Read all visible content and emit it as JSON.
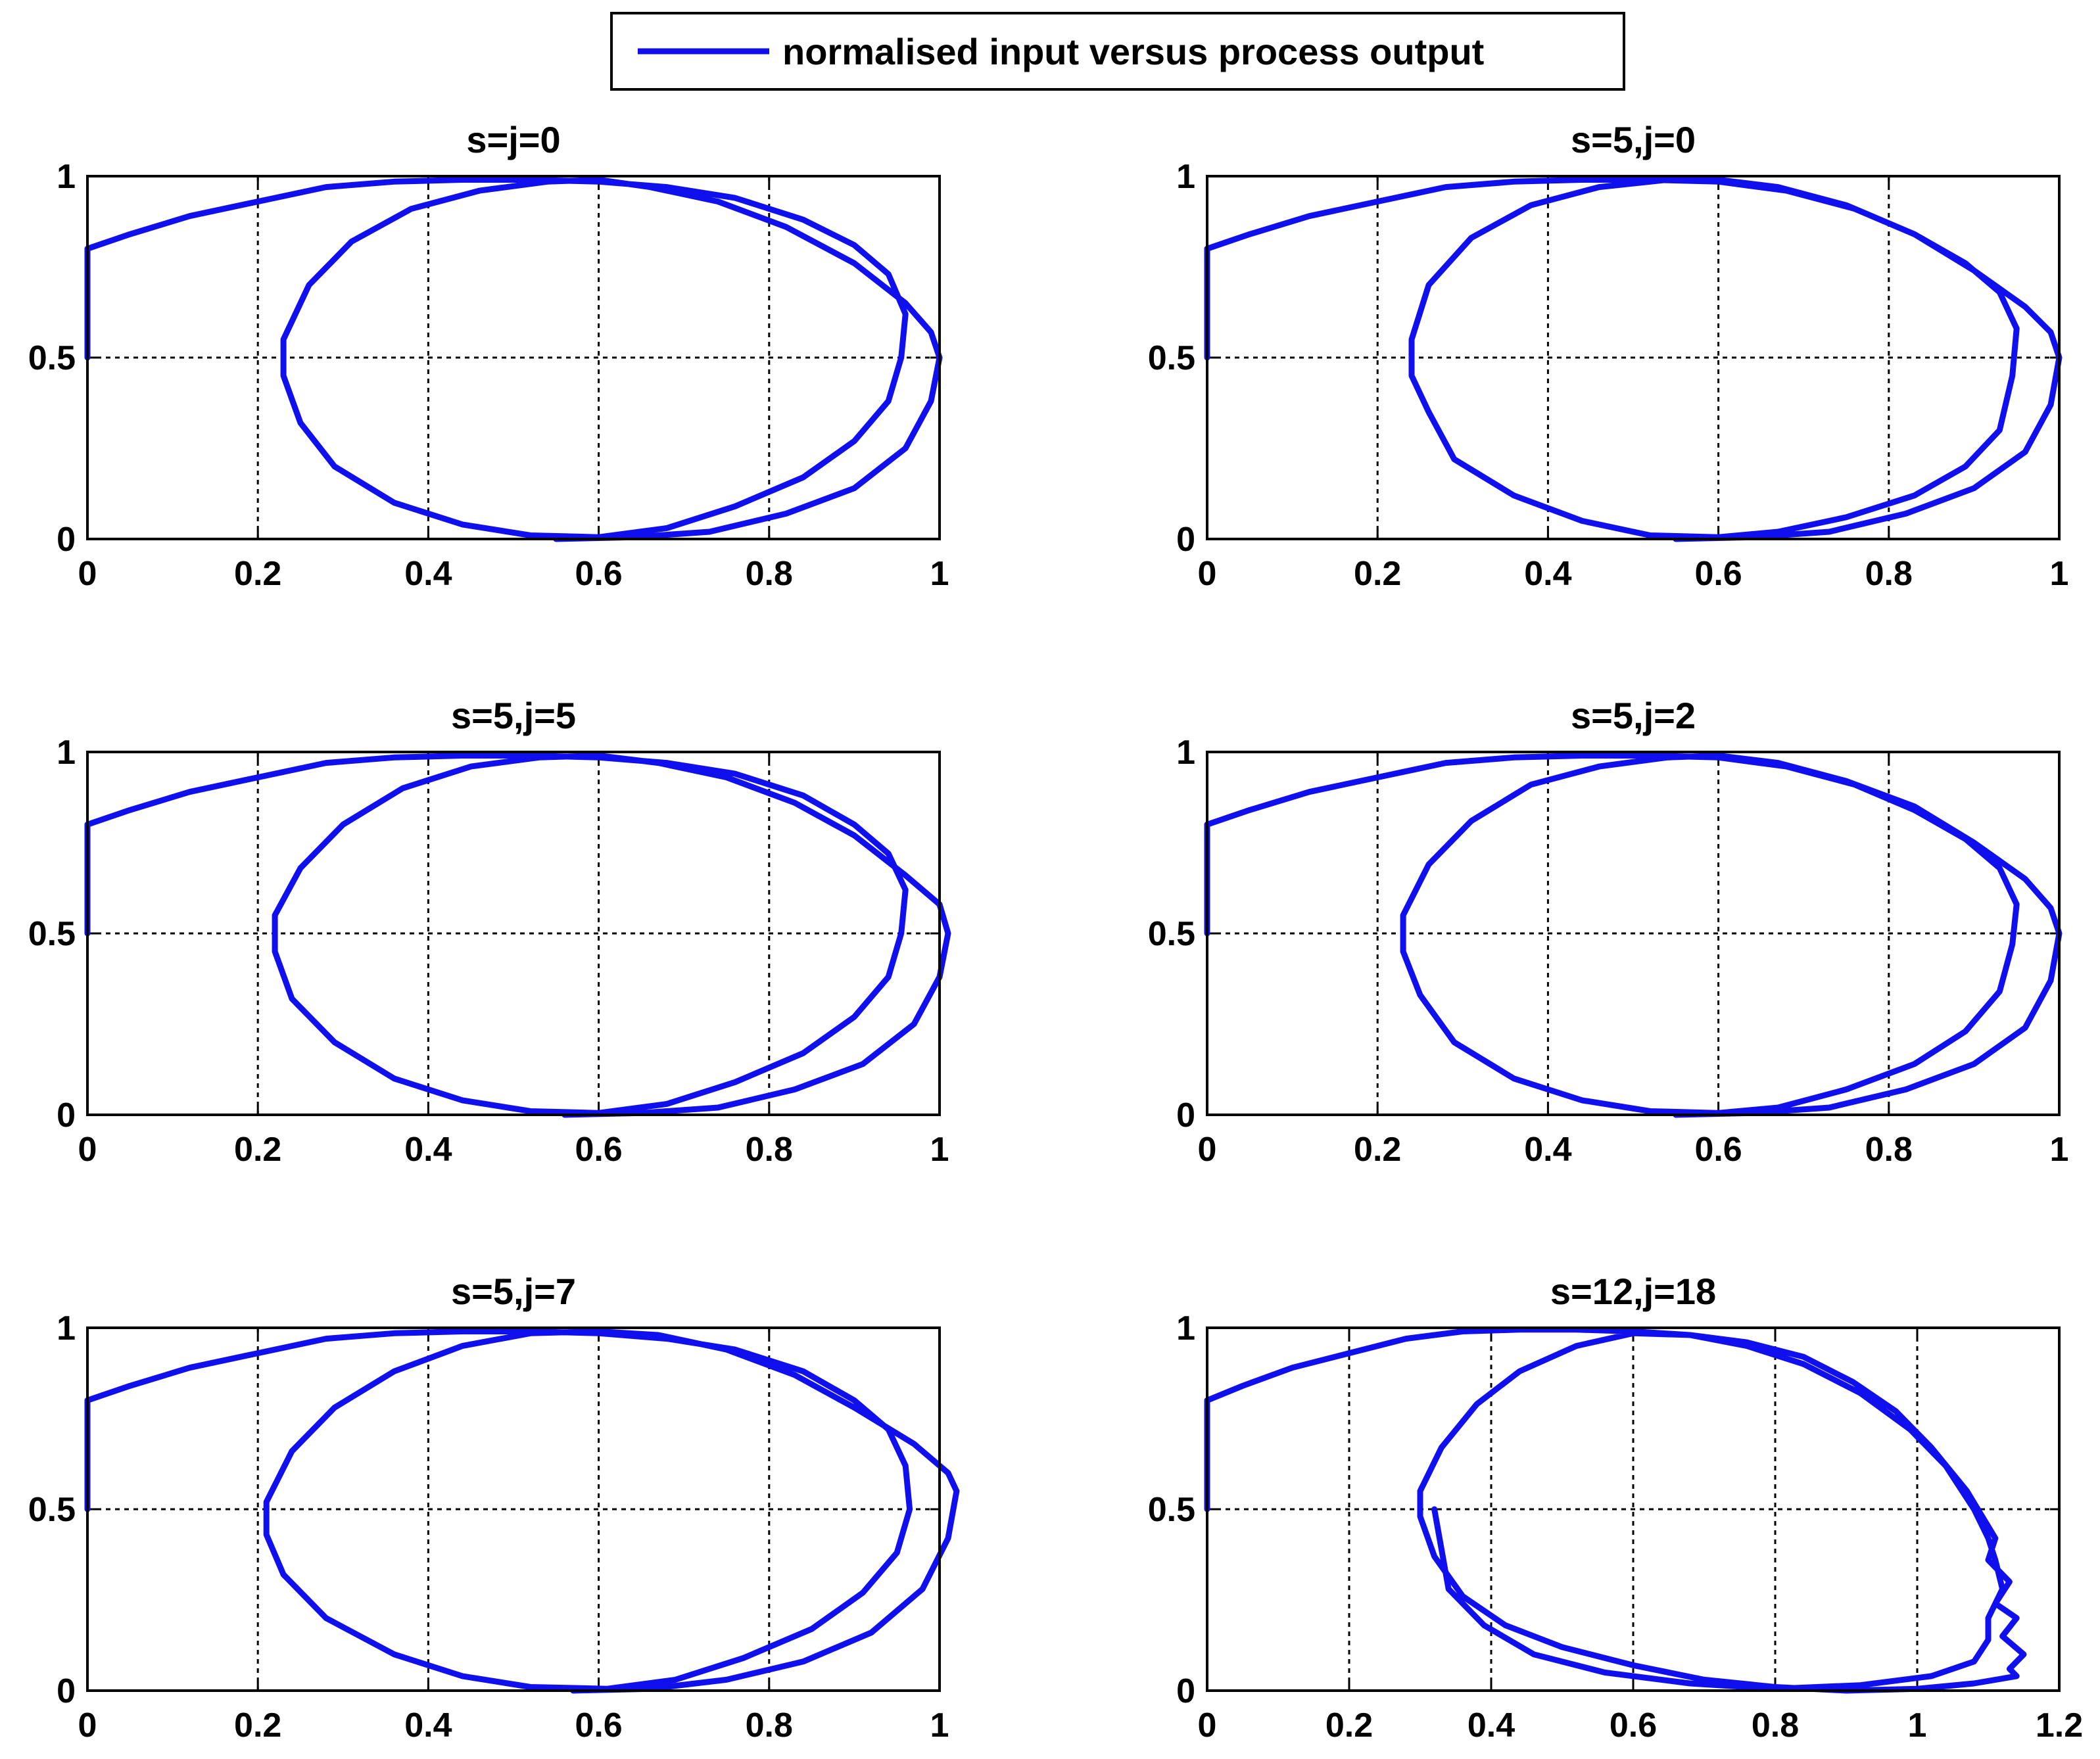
{
  "legend": {
    "label": "normalised input versus process output",
    "color": "#1010ee"
  },
  "chart_data": [
    {
      "type": "line",
      "title": "s=j=0",
      "xlim": [
        0,
        1
      ],
      "ylim": [
        0,
        1
      ],
      "xticks": [
        0,
        0.2,
        0.4,
        0.6,
        0.8,
        1
      ],
      "xtick_labels": [
        "0",
        "0.2",
        "0.4",
        "0.6",
        "0.8",
        "1"
      ],
      "yticks": [
        0,
        0.5,
        1
      ],
      "ytick_labels": [
        "0",
        "0.5",
        "1"
      ],
      "grid": true,
      "series": [
        {
          "name": "normalised input versus process output",
          "x": [
            0,
            0,
            0.05,
            0.12,
            0.2,
            0.28,
            0.36,
            0.44,
            0.52,
            0.6,
            0.68,
            0.76,
            0.84,
            0.9,
            0.94,
            0.96,
            0.955,
            0.94,
            0.9,
            0.84,
            0.76,
            0.68,
            0.6,
            0.52,
            0.44,
            0.36,
            0.29,
            0.25,
            0.23,
            0.23,
            0.26,
            0.31,
            0.38,
            0.46,
            0.54,
            0.6,
            0.66,
            0.74,
            0.82,
            0.9,
            0.96,
            0.99,
            1.0,
            0.99,
            0.96,
            0.9,
            0.82,
            0.73,
            0.64,
            0.55
          ],
          "y": [
            0.5,
            0.8,
            0.84,
            0.89,
            0.93,
            0.97,
            0.985,
            0.99,
            0.99,
            0.985,
            0.97,
            0.94,
            0.88,
            0.81,
            0.73,
            0.62,
            0.5,
            0.38,
            0.27,
            0.17,
            0.09,
            0.03,
            0.005,
            0.01,
            0.04,
            0.1,
            0.2,
            0.32,
            0.45,
            0.55,
            0.7,
            0.82,
            0.91,
            0.96,
            0.985,
            0.99,
            0.97,
            0.93,
            0.86,
            0.76,
            0.65,
            0.57,
            0.5,
            0.38,
            0.25,
            0.14,
            0.07,
            0.02,
            0.005,
            0.0
          ]
        }
      ]
    },
    {
      "type": "line",
      "title": "s=5,j=0",
      "xlim": [
        0,
        1
      ],
      "ylim": [
        0,
        1
      ],
      "xticks": [
        0,
        0.2,
        0.4,
        0.6,
        0.8,
        1
      ],
      "xtick_labels": [
        "0",
        "0.2",
        "0.4",
        "0.6",
        "0.8",
        "1"
      ],
      "yticks": [
        0,
        0.5,
        1
      ],
      "ytick_labels": [
        "0",
        "0.5",
        "1"
      ],
      "grid": true,
      "series": [
        {
          "name": "normalised input versus process output",
          "x": [
            0,
            0,
            0.05,
            0.12,
            0.2,
            0.28,
            0.36,
            0.44,
            0.52,
            0.6,
            0.68,
            0.76,
            0.83,
            0.89,
            0.93,
            0.95,
            0.945,
            0.93,
            0.89,
            0.83,
            0.75,
            0.67,
            0.6,
            0.52,
            0.44,
            0.36,
            0.29,
            0.26,
            0.24,
            0.24,
            0.26,
            0.31,
            0.38,
            0.46,
            0.54,
            0.6,
            0.67,
            0.75,
            0.83,
            0.9,
            0.96,
            0.99,
            1.0,
            0.99,
            0.96,
            0.9,
            0.82,
            0.73,
            0.64,
            0.55
          ],
          "y": [
            0.5,
            0.8,
            0.84,
            0.89,
            0.93,
            0.97,
            0.985,
            0.99,
            0.99,
            0.985,
            0.96,
            0.91,
            0.84,
            0.76,
            0.68,
            0.58,
            0.45,
            0.3,
            0.2,
            0.12,
            0.06,
            0.02,
            0.005,
            0.01,
            0.05,
            0.12,
            0.22,
            0.35,
            0.45,
            0.55,
            0.7,
            0.83,
            0.92,
            0.97,
            0.99,
            0.99,
            0.97,
            0.92,
            0.84,
            0.74,
            0.64,
            0.57,
            0.5,
            0.37,
            0.24,
            0.14,
            0.07,
            0.02,
            0.005,
            0.0
          ]
        }
      ]
    },
    {
      "type": "line",
      "title": "s=5,j=5",
      "xlim": [
        0,
        1
      ],
      "ylim": [
        0,
        1
      ],
      "xticks": [
        0,
        0.2,
        0.4,
        0.6,
        0.8,
        1
      ],
      "xtick_labels": [
        "0",
        "0.2",
        "0.4",
        "0.6",
        "0.8",
        "1"
      ],
      "yticks": [
        0,
        0.5,
        1
      ],
      "ytick_labels": [
        "0",
        "0.5",
        "1"
      ],
      "grid": true,
      "series": [
        {
          "name": "normalised input versus process output",
          "x": [
            0,
            0,
            0.05,
            0.12,
            0.2,
            0.28,
            0.36,
            0.44,
            0.52,
            0.6,
            0.68,
            0.76,
            0.84,
            0.9,
            0.94,
            0.96,
            0.955,
            0.94,
            0.9,
            0.84,
            0.76,
            0.68,
            0.6,
            0.52,
            0.44,
            0.36,
            0.29,
            0.24,
            0.22,
            0.22,
            0.25,
            0.3,
            0.37,
            0.45,
            0.53,
            0.6,
            0.67,
            0.75,
            0.83,
            0.9,
            0.96,
            1.0,
            1.01,
            1.0,
            0.97,
            0.91,
            0.83,
            0.74,
            0.65,
            0.56
          ],
          "y": [
            0.5,
            0.8,
            0.84,
            0.89,
            0.93,
            0.97,
            0.985,
            0.99,
            0.99,
            0.985,
            0.97,
            0.94,
            0.88,
            0.8,
            0.72,
            0.62,
            0.5,
            0.38,
            0.27,
            0.17,
            0.09,
            0.03,
            0.005,
            0.01,
            0.04,
            0.1,
            0.2,
            0.32,
            0.45,
            0.55,
            0.68,
            0.8,
            0.9,
            0.96,
            0.985,
            0.99,
            0.97,
            0.93,
            0.86,
            0.77,
            0.66,
            0.58,
            0.5,
            0.38,
            0.25,
            0.14,
            0.07,
            0.02,
            0.005,
            0.0
          ]
        }
      ]
    },
    {
      "type": "line",
      "title": "s=5,j=2",
      "xlim": [
        0,
        1
      ],
      "ylim": [
        0,
        1
      ],
      "xticks": [
        0,
        0.2,
        0.4,
        0.6,
        0.8,
        1
      ],
      "xtick_labels": [
        "0",
        "0.2",
        "0.4",
        "0.6",
        "0.8",
        "1"
      ],
      "yticks": [
        0,
        0.5,
        1
      ],
      "ytick_labels": [
        "0",
        "0.5",
        "1"
      ],
      "grid": true,
      "series": [
        {
          "name": "normalised input versus process output",
          "x": [
            0,
            0,
            0.05,
            0.12,
            0.2,
            0.28,
            0.36,
            0.44,
            0.52,
            0.6,
            0.68,
            0.76,
            0.83,
            0.89,
            0.93,
            0.95,
            0.945,
            0.93,
            0.89,
            0.83,
            0.75,
            0.67,
            0.6,
            0.52,
            0.44,
            0.36,
            0.29,
            0.25,
            0.23,
            0.23,
            0.26,
            0.31,
            0.38,
            0.46,
            0.54,
            0.6,
            0.67,
            0.75,
            0.83,
            0.9,
            0.96,
            0.99,
            1.0,
            0.99,
            0.96,
            0.9,
            0.82,
            0.73,
            0.64,
            0.55
          ],
          "y": [
            0.5,
            0.8,
            0.84,
            0.89,
            0.93,
            0.97,
            0.985,
            0.99,
            0.99,
            0.985,
            0.96,
            0.91,
            0.84,
            0.76,
            0.68,
            0.58,
            0.47,
            0.34,
            0.23,
            0.14,
            0.07,
            0.02,
            0.005,
            0.01,
            0.04,
            0.1,
            0.2,
            0.33,
            0.45,
            0.55,
            0.69,
            0.81,
            0.91,
            0.96,
            0.985,
            0.99,
            0.97,
            0.92,
            0.85,
            0.75,
            0.65,
            0.57,
            0.5,
            0.37,
            0.24,
            0.14,
            0.07,
            0.02,
            0.005,
            0.0
          ]
        }
      ]
    },
    {
      "type": "line",
      "title": "s=5,j=7",
      "xlim": [
        0,
        1
      ],
      "ylim": [
        0,
        1
      ],
      "xticks": [
        0,
        0.2,
        0.4,
        0.6,
        0.8,
        1
      ],
      "xtick_labels": [
        "0",
        "0.2",
        "0.4",
        "0.6",
        "0.8",
        "1"
      ],
      "yticks": [
        0,
        0.5,
        1
      ],
      "ytick_labels": [
        "0",
        "0.5",
        "1"
      ],
      "grid": true,
      "series": [
        {
          "name": "normalised input versus process output",
          "x": [
            0,
            0,
            0.05,
            0.12,
            0.2,
            0.28,
            0.36,
            0.44,
            0.52,
            0.6,
            0.68,
            0.76,
            0.84,
            0.9,
            0.94,
            0.96,
            0.965,
            0.95,
            0.91,
            0.85,
            0.77,
            0.69,
            0.61,
            0.52,
            0.44,
            0.36,
            0.28,
            0.23,
            0.21,
            0.21,
            0.24,
            0.29,
            0.36,
            0.44,
            0.52,
            0.6,
            0.67,
            0.75,
            0.83,
            0.9,
            0.97,
            1.01,
            1.02,
            1.01,
            0.98,
            0.92,
            0.84,
            0.75,
            0.66,
            0.57
          ],
          "y": [
            0.5,
            0.8,
            0.84,
            0.89,
            0.93,
            0.97,
            0.985,
            0.99,
            0.99,
            0.985,
            0.97,
            0.94,
            0.88,
            0.8,
            0.72,
            0.62,
            0.5,
            0.38,
            0.27,
            0.17,
            0.09,
            0.03,
            0.005,
            0.01,
            0.04,
            0.1,
            0.2,
            0.32,
            0.43,
            0.52,
            0.66,
            0.78,
            0.88,
            0.95,
            0.985,
            0.99,
            0.98,
            0.94,
            0.87,
            0.78,
            0.68,
            0.6,
            0.55,
            0.42,
            0.28,
            0.16,
            0.08,
            0.03,
            0.005,
            0.0
          ]
        }
      ]
    },
    {
      "type": "line",
      "title": "s=12,j=18",
      "xlim": [
        0,
        1.2
      ],
      "ylim": [
        0,
        1
      ],
      "xticks": [
        0,
        0.2,
        0.4,
        0.6,
        0.8,
        1,
        1.2
      ],
      "xtick_labels": [
        "0",
        "0.2",
        "0.4",
        "0.6",
        "0.8",
        "1",
        "1.2"
      ],
      "yticks": [
        0,
        0.5,
        1
      ],
      "ytick_labels": [
        "0",
        "0.5",
        "1"
      ],
      "grid": true,
      "series": [
        {
          "name": "normalised input versus process output",
          "x": [
            0,
            0,
            0.05,
            0.12,
            0.2,
            0.28,
            0.36,
            0.44,
            0.52,
            0.6,
            0.68,
            0.76,
            0.84,
            0.91,
            0.97,
            1.02,
            1.07,
            1.11,
            1.1,
            1.13,
            1.11,
            1.14,
            1.12,
            1.15,
            1.13,
            1.14,
            1.08,
            1.0,
            0.9,
            0.8,
            0.7,
            0.6,
            0.5,
            0.42,
            0.36,
            0.32,
            0.3,
            0.3,
            0.33,
            0.38,
            0.44,
            0.52,
            0.6,
            0.68,
            0.76,
            0.84,
            0.92,
            0.99,
            1.04,
            1.08,
            1.1,
            1.11,
            1.12,
            1.1,
            1.1,
            1.08,
            1.02,
            0.92,
            0.8,
            0.68,
            0.56,
            0.46,
            0.39,
            0.34,
            0.32
          ],
          "y": [
            0.5,
            0.8,
            0.84,
            0.89,
            0.93,
            0.97,
            0.99,
            0.995,
            0.995,
            0.99,
            0.98,
            0.96,
            0.92,
            0.85,
            0.77,
            0.67,
            0.55,
            0.42,
            0.36,
            0.3,
            0.24,
            0.2,
            0.15,
            0.1,
            0.06,
            0.04,
            0.02,
            0.005,
            0.0,
            0.01,
            0.03,
            0.07,
            0.12,
            0.18,
            0.26,
            0.37,
            0.48,
            0.55,
            0.67,
            0.79,
            0.88,
            0.95,
            0.985,
            0.98,
            0.95,
            0.9,
            0.82,
            0.72,
            0.62,
            0.5,
            0.42,
            0.36,
            0.28,
            0.2,
            0.14,
            0.08,
            0.04,
            0.015,
            0.005,
            0.02,
            0.05,
            0.1,
            0.18,
            0.28,
            0.5
          ]
        }
      ]
    }
  ]
}
